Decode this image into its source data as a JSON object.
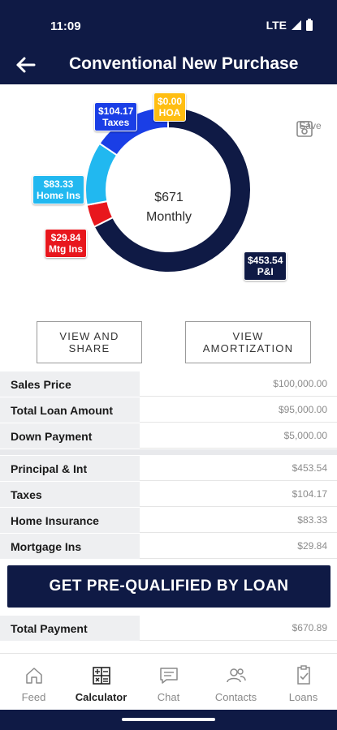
{
  "status_bar": {
    "time": "11:09",
    "network": "LTE"
  },
  "header": {
    "title": "Conventional New Purchase"
  },
  "chart_data": {
    "type": "pie",
    "categories": [
      "P&I",
      "Mtg Ins",
      "Home Ins",
      "Taxes",
      "HOA"
    ],
    "values": [
      453.54,
      29.84,
      83.33,
      104.17,
      0.0
    ],
    "colors": [
      "#0f1a45",
      "#e8171d",
      "#21b8f0",
      "#1a3ee6",
      "#ffbe12"
    ],
    "center_amount": "$671",
    "center_label": "Monthly",
    "labels": [
      {
        "amount": "$453.54",
        "name": "P&I"
      },
      {
        "amount": "$29.84",
        "name": "Mtg Ins"
      },
      {
        "amount": "$83.33",
        "name": "Home Ins"
      },
      {
        "amount": "$104.17",
        "name": "Taxes"
      },
      {
        "amount": "$0.00",
        "name": "HOA"
      }
    ]
  },
  "save_label": "Save",
  "actions": {
    "view_share": "VIEW AND SHARE",
    "view_amortization": "VIEW AMORTIZATION"
  },
  "loan_summary": [
    {
      "label": "Sales Price",
      "value": "$100,000.00"
    },
    {
      "label": "Total Loan Amount",
      "value": "$95,000.00"
    },
    {
      "label": "Down Payment",
      "value": "$5,000.00"
    }
  ],
  "payment_breakdown": [
    {
      "label": "Principal & Int",
      "value": "$453.54"
    },
    {
      "label": "Taxes",
      "value": "$104.17"
    },
    {
      "label": "Home Insurance",
      "value": "$83.33"
    },
    {
      "label": "Mortgage Ins",
      "value": "$29.84"
    }
  ],
  "cta_label": "GET PRE-QUALIFIED BY LOAN",
  "total": {
    "label": "Total Payment",
    "value": "$670.89"
  },
  "tabs": [
    {
      "label": "Feed",
      "icon": "home-icon"
    },
    {
      "label": "Calculator",
      "icon": "calculator-icon"
    },
    {
      "label": "Chat",
      "icon": "chat-icon"
    },
    {
      "label": "Contacts",
      "icon": "contacts-icon"
    },
    {
      "label": "Loans",
      "icon": "loans-icon"
    }
  ],
  "active_tab": "Calculator"
}
